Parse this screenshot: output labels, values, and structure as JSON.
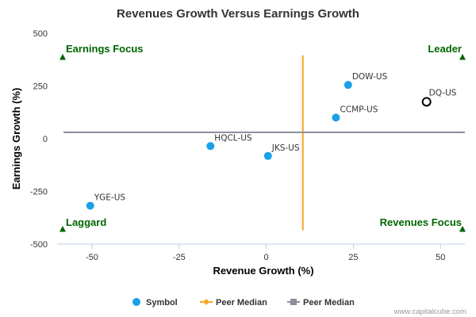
{
  "chart_data": {
    "type": "scatter",
    "title": "Revenues Growth Versus Earnings Growth",
    "xlabel": "Revenue Growth (%)",
    "ylabel": "Earnings Growth (%)",
    "xlim": [
      -60,
      57
    ],
    "ylim": [
      -500,
      500
    ],
    "x_ticks": [
      -50,
      -25,
      0,
      25,
      50
    ],
    "y_ticks": [
      -500,
      -250,
      0,
      250,
      500
    ],
    "x_tick_labels": [
      "-50",
      "-25",
      "0",
      "25",
      "50"
    ],
    "y_tick_labels": [
      "-500",
      "-250",
      "0",
      "250",
      "500"
    ],
    "grid": false,
    "series": [
      {
        "name": "Symbol",
        "color": "#1aa1ea",
        "points": [
          {
            "label": "DOW-US",
            "x": 23.5,
            "y": 255
          },
          {
            "label": "CCMP-US",
            "x": 20,
            "y": 100
          },
          {
            "label": "HQCL-US",
            "x": -16,
            "y": -35
          },
          {
            "label": "JKS-US",
            "x": 0.5,
            "y": -82
          },
          {
            "label": "YGE-US",
            "x": -50.5,
            "y": -318
          }
        ]
      }
    ],
    "highlight": {
      "label": "DQ-US",
      "x": 46,
      "y": 175,
      "style": "hollow-circle",
      "color": "#000000"
    },
    "reference_lines": [
      {
        "name": "Peer Median",
        "orientation": "vertical",
        "value": 10.5,
        "y_range": [
          -435,
          395
        ],
        "color": "#f5a623"
      },
      {
        "name": "Peer Median",
        "orientation": "horizontal",
        "value": 30,
        "color": "#8e8e9e"
      }
    ],
    "quadrant_labels": {
      "top_left": "Earnings Focus",
      "top_right": "Leader",
      "bottom_left": "Laggard",
      "bottom_right": "Revenues Focus"
    },
    "legend": {
      "placement": "bottom-center",
      "items": [
        {
          "label": "Symbol",
          "marker": "circle",
          "color": "#1aa1ea"
        },
        {
          "label": "Peer Median",
          "marker": "diamond-line",
          "color": "#f5a623"
        },
        {
          "label": "Peer Median",
          "marker": "square-line",
          "color": "#8e8e9e"
        }
      ]
    },
    "quadrant_marker_color": "#006600",
    "axis_color": "#c0d0e0"
  },
  "footer": {
    "credit": "www.capitalcube.com"
  }
}
